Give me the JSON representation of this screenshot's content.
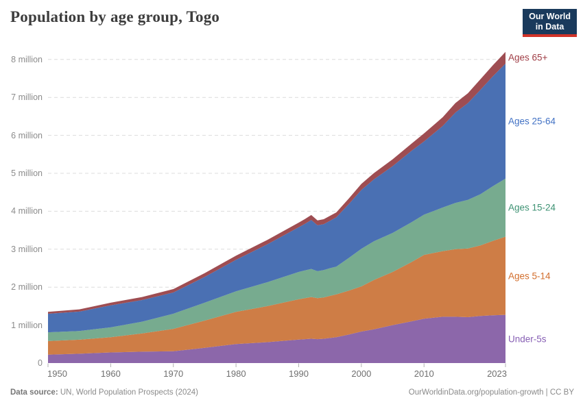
{
  "header": {
    "title": "Population by age group, Togo",
    "logo": {
      "line1": "Our World",
      "line2": "in Data",
      "bg_color": "#1a3a5c",
      "accent_color": "#d13328"
    }
  },
  "footer": {
    "source_label": "Data source:",
    "source_text": "UN, World Population Prospects (2024)",
    "citation": "OurWorldinData.org/population-growth | CC BY"
  },
  "chart_data": {
    "type": "area",
    "stacked": true,
    "title": "Population by age group, Togo",
    "xlabel": "",
    "ylabel": "",
    "unit": "people",
    "x_range": [
      1950,
      2023
    ],
    "ylim": [
      0,
      8.2
    ],
    "grid": "horizontal-dashed",
    "legend_position": "right-inline-labels",
    "x": [
      1950,
      1955,
      1960,
      1965,
      1970,
      1975,
      1980,
      1985,
      1990,
      1991,
      1992,
      1993,
      1994,
      1995,
      1996,
      1998,
      2000,
      2002,
      2005,
      2008,
      2010,
      2013,
      2015,
      2017,
      2019,
      2021,
      2023
    ],
    "series": [
      {
        "name": "Under-5s",
        "color": "#8c67aa",
        "label_color": "#875fb4",
        "values": [
          0.22,
          0.245,
          0.28,
          0.3,
          0.31,
          0.4,
          0.5,
          0.55,
          0.62,
          0.63,
          0.64,
          0.63,
          0.64,
          0.66,
          0.68,
          0.75,
          0.83,
          0.89,
          1.0,
          1.1,
          1.17,
          1.22,
          1.22,
          1.21,
          1.24,
          1.26,
          1.27
        ]
      },
      {
        "name": "Ages 5-14",
        "color": "#ce7d46",
        "label_color": "#d26e2d",
        "values": [
          0.36,
          0.37,
          0.4,
          0.48,
          0.59,
          0.72,
          0.85,
          0.95,
          1.06,
          1.08,
          1.1,
          1.08,
          1.09,
          1.11,
          1.13,
          1.16,
          1.19,
          1.3,
          1.4,
          1.56,
          1.68,
          1.73,
          1.78,
          1.81,
          1.86,
          1.96,
          2.06
        ]
      },
      {
        "name": "Ages 15-24",
        "color": "#77ab8f",
        "label_color": "#3d9273",
        "values": [
          0.23,
          0.23,
          0.26,
          0.31,
          0.4,
          0.47,
          0.54,
          0.63,
          0.72,
          0.73,
          0.74,
          0.71,
          0.72,
          0.73,
          0.73,
          0.86,
          0.99,
          1.02,
          1.03,
          1.05,
          1.06,
          1.15,
          1.22,
          1.28,
          1.35,
          1.44,
          1.53
        ]
      },
      {
        "name": "Ages 25-64",
        "color": "#4a70b3",
        "label_color": "#4171c4",
        "values": [
          0.49,
          0.51,
          0.58,
          0.57,
          0.56,
          0.68,
          0.83,
          1.0,
          1.18,
          1.23,
          1.29,
          1.21,
          1.21,
          1.25,
          1.3,
          1.42,
          1.55,
          1.63,
          1.76,
          1.88,
          1.93,
          2.15,
          2.38,
          2.55,
          2.75,
          2.9,
          3.03
        ]
      },
      {
        "name": "Ages 65+",
        "color": "#9e4d52",
        "label_color": "#a03e46",
        "values": [
          0.05,
          0.06,
          0.07,
          0.08,
          0.09,
          0.1,
          0.11,
          0.115,
          0.12,
          0.125,
          0.13,
          0.13,
          0.13,
          0.13,
          0.13,
          0.145,
          0.16,
          0.165,
          0.18,
          0.19,
          0.21,
          0.23,
          0.25,
          0.26,
          0.28,
          0.29,
          0.31
        ]
      }
    ],
    "yticks": [
      {
        "value": 0,
        "label": "0"
      },
      {
        "value": 1,
        "label": "1 million"
      },
      {
        "value": 2,
        "label": "2 million"
      },
      {
        "value": 3,
        "label": "3 million"
      },
      {
        "value": 4,
        "label": "4 million"
      },
      {
        "value": 5,
        "label": "5 million"
      },
      {
        "value": 6,
        "label": "6 million"
      },
      {
        "value": 7,
        "label": "7 million"
      },
      {
        "value": 8,
        "label": "8 million"
      }
    ],
    "xticks": [
      {
        "value": 1950,
        "label": "1950"
      },
      {
        "value": 1960,
        "label": "1960"
      },
      {
        "value": 1970,
        "label": "1970"
      },
      {
        "value": 1980,
        "label": "1980"
      },
      {
        "value": 1990,
        "label": "1990"
      },
      {
        "value": 2000,
        "label": "2000"
      },
      {
        "value": 2010,
        "label": "2010"
      },
      {
        "value": 2023,
        "label": "2023"
      }
    ]
  }
}
